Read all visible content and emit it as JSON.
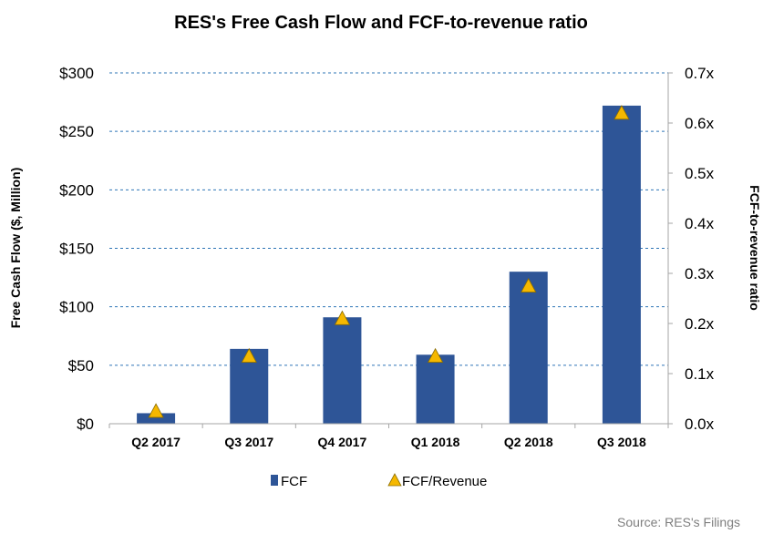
{
  "chart_data": {
    "type": "bar",
    "title": "RES's Free Cash Flow and FCF-to-revenue ratio",
    "categories": [
      "Q2 2017",
      "Q3 2017",
      "Q4 2017",
      "Q1 2018",
      "Q2 2018",
      "Q3 2018"
    ],
    "series": [
      {
        "name": "FCF",
        "type": "bar",
        "axis": "left",
        "color": "#2e5597",
        "values": [
          9,
          64,
          91,
          59,
          130,
          272
        ]
      },
      {
        "name": "FCF/Revenue",
        "type": "marker-triangle",
        "axis": "right",
        "color": "#f5b800",
        "values": [
          0.025,
          0.135,
          0.21,
          0.135,
          0.275,
          0.62
        ]
      }
    ],
    "ylabel": "Free Cash Flow ($, Million)",
    "y2label": "FCF-to-revenue ratio",
    "ylim": [
      0,
      300
    ],
    "y2lim": [
      0,
      0.7
    ],
    "y_ticks": [
      "$0",
      "$50",
      "$100",
      "$150",
      "$200",
      "$250",
      "$300"
    ],
    "y2_ticks": [
      "0.0x",
      "0.1x",
      "0.2x",
      "0.3x",
      "0.4x",
      "0.5x",
      "0.6x",
      "0.7x"
    ],
    "grid": true,
    "grid_color": "#2e75b6",
    "legend_position": "bottom",
    "source": "Source: RES's Filings"
  }
}
